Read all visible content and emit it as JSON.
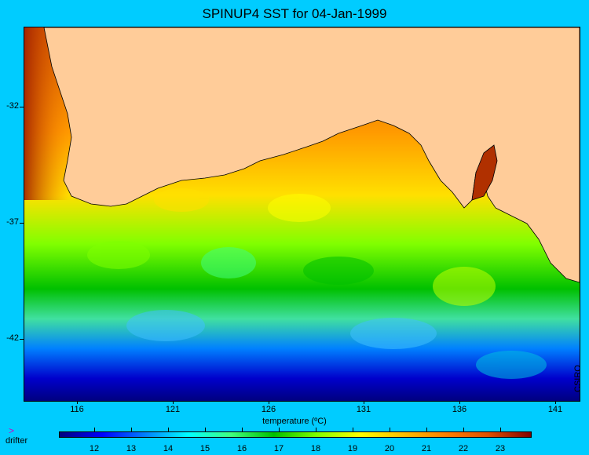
{
  "title": "SPINUP4 SST for 04-Jan-1999",
  "y_axis": {
    "ticks": [
      "-32",
      "-37",
      "-42"
    ]
  },
  "x_axis": {
    "ticks": [
      "116",
      "121",
      "126",
      "131",
      "136",
      "141"
    ]
  },
  "credit": "CSIRO",
  "legend": {
    "symbol": ">",
    "label": "drifter",
    "symbol_color": "#cc00cc"
  },
  "colorbar": {
    "title": "temperature (ºC)",
    "ticks": [
      "12",
      "13",
      "14",
      "15",
      "16",
      "17",
      "18",
      "19",
      "20",
      "21",
      "22",
      "23"
    ],
    "colors": [
      "#00007f",
      "#0000ff",
      "#0080ff",
      "#00ffff",
      "#40ff80",
      "#00c000",
      "#80ff00",
      "#ffff00",
      "#ffc000",
      "#ff8000",
      "#e05000",
      "#800000"
    ]
  },
  "colors": {
    "land": "#ffcc99",
    "background": "#00ccff"
  }
}
